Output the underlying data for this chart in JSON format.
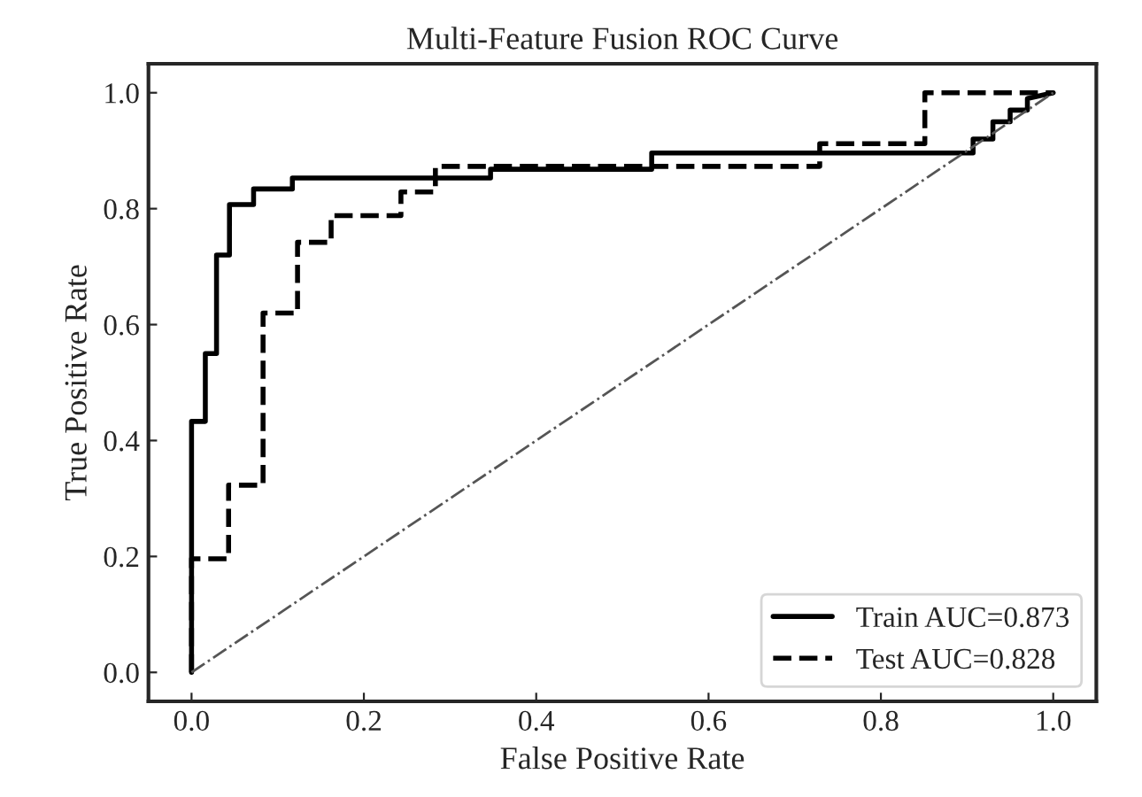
{
  "chart_data": {
    "type": "line",
    "title": "Multi-Feature Fusion ROC Curve",
    "xlabel": "False Positive Rate",
    "ylabel": "True Positive Rate",
    "xlim": [
      -0.05,
      1.05
    ],
    "ylim": [
      -0.05,
      1.05
    ],
    "xticks": [
      {
        "value": 0,
        "label": "0.0"
      },
      {
        "value": 0.2,
        "label": "0.2"
      },
      {
        "value": 0.4,
        "label": "0.4"
      },
      {
        "value": 0.6,
        "label": "0.6"
      },
      {
        "value": 0.8,
        "label": "0.8"
      },
      {
        "value": 1,
        "label": "1.0"
      }
    ],
    "yticks": [
      {
        "value": 0,
        "label": "0.0"
      },
      {
        "value": 0.2,
        "label": "0.2"
      },
      {
        "value": 0.4,
        "label": "0.4"
      },
      {
        "value": 0.6,
        "label": "0.6"
      },
      {
        "value": 0.8,
        "label": "0.8"
      },
      {
        "value": 1,
        "label": "1.0"
      }
    ],
    "grid": false,
    "legend": "bottom right",
    "marker": "none",
    "series": [
      {
        "name": "Train AUC=0.873",
        "color": "#000000",
        "line_style": "solid",
        "x": [
          0,
          0,
          0.016,
          0.016,
          0.029,
          0.029,
          0.044,
          0.044,
          0.072,
          0.072,
          0.117,
          0.117,
          0.347,
          0.347,
          0.534,
          0.534,
          0.907,
          0.907,
          0.93,
          0.93,
          0.95,
          0.95,
          0.97,
          0.97,
          1
        ],
        "values": [
          0,
          0.433,
          0.433,
          0.55,
          0.55,
          0.72,
          0.72,
          0.807,
          0.807,
          0.834,
          0.834,
          0.853,
          0.853,
          0.868,
          0.868,
          0.896,
          0.896,
          0.92,
          0.92,
          0.95,
          0.95,
          0.97,
          0.97,
          0.99,
          1
        ]
      },
      {
        "name": "Test AUC=0.828",
        "color": "#000000",
        "line_style": "dashed",
        "x": [
          0,
          0,
          0.043,
          0.043,
          0.083,
          0.083,
          0.123,
          0.123,
          0.162,
          0.162,
          0.243,
          0.243,
          0.283,
          0.283,
          0.729,
          0.729,
          0.851,
          0.851,
          1
        ],
        "values": [
          0,
          0.196,
          0.196,
          0.323,
          0.323,
          0.62,
          0.62,
          0.742,
          0.742,
          0.788,
          0.788,
          0.829,
          0.829,
          0.873,
          0.873,
          0.912,
          0.912,
          1,
          1
        ]
      },
      {
        "color": "#555555",
        "line_style": "dashdot",
        "x": [
          0,
          1
        ],
        "values": [
          0,
          1
        ]
      }
    ]
  }
}
